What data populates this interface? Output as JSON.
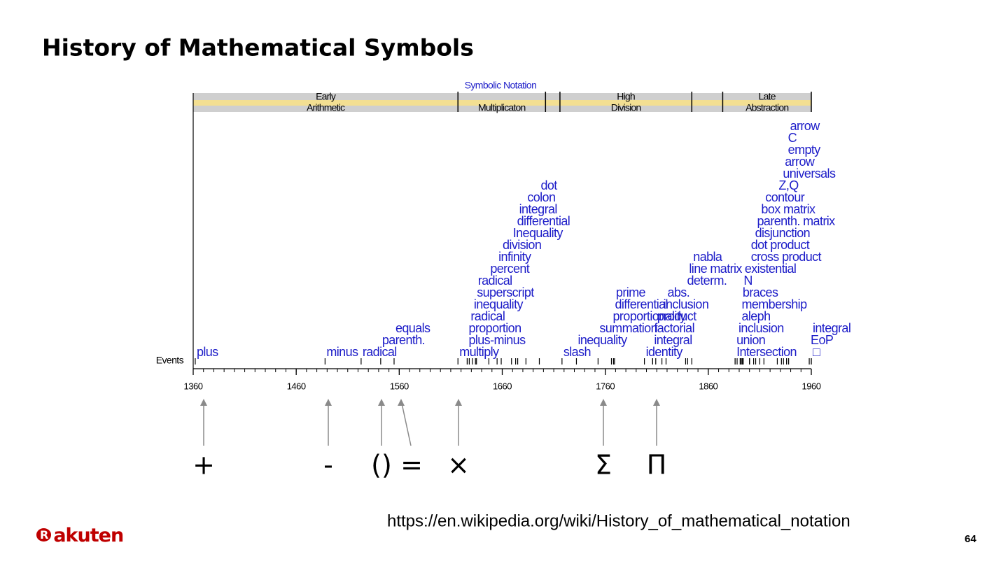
{
  "title": "History of Mathematical Symbols",
  "timeline": {
    "header": "Symbolic Notation",
    "events_label": "Events",
    "xlim": [
      1360,
      1960
    ],
    "xticks": [
      1360,
      1460,
      1560,
      1660,
      1760,
      1860,
      1960
    ],
    "eras": [
      {
        "lines": [
          "Early",
          "Arithmetic"
        ],
        "start": 1360,
        "end": 1617
      },
      {
        "lines": [
          "Multiplicaton"
        ],
        "start": 1617,
        "end": 1702
      },
      {
        "start": 1702,
        "end": 1716
      },
      {
        "lines": [
          "High",
          "Division"
        ],
        "start": 1716,
        "end": 1844
      },
      {
        "start": 1844,
        "end": 1874
      },
      {
        "lines": [
          "Late",
          "Abstraction"
        ],
        "start": 1874,
        "end": 1960
      }
    ],
    "events": [
      {
        "label": "plus",
        "year": 1362
      },
      {
        "label": "minus",
        "year": 1488
      },
      {
        "label": "radical",
        "year": 1523
      },
      {
        "label": "parenth.",
        "year": 1542
      },
      {
        "label": "equals",
        "year": 1555
      },
      {
        "label": "multiply",
        "year": 1617
      },
      {
        "label": "plus-minus",
        "year": 1626
      },
      {
        "label": "proportion",
        "year": 1626
      },
      {
        "label": "radical",
        "year": 1628
      },
      {
        "label": "inequality",
        "year": 1631
      },
      {
        "label": "superscript",
        "year": 1634
      },
      {
        "label": "radical",
        "year": 1635
      },
      {
        "label": "percent",
        "year": 1647
      },
      {
        "label": "infinity",
        "year": 1655
      },
      {
        "label": "division",
        "year": 1659
      },
      {
        "label": "Inequality",
        "year": 1669
      },
      {
        "label": "differential",
        "year": 1673
      },
      {
        "label": "integral",
        "year": 1675
      },
      {
        "label": "colon",
        "year": 1683
      },
      {
        "label": "dot",
        "year": 1696
      },
      {
        "label": "slash",
        "year": 1718
      },
      {
        "label": "inequality",
        "year": 1732
      },
      {
        "label": "summation",
        "year": 1753
      },
      {
        "label": "proportionality",
        "year": 1766
      },
      {
        "label": "differential",
        "year": 1768
      },
      {
        "label": "prime",
        "year": 1769
      },
      {
        "label": "identity",
        "year": 1798
      },
      {
        "label": "integral",
        "year": 1806
      },
      {
        "label": "factorial",
        "year": 1806
      },
      {
        "label": "product",
        "year": 1809
      },
      {
        "label": "inclusion",
        "year": 1815
      },
      {
        "label": "abs.",
        "year": 1819
      },
      {
        "label": "determ.",
        "year": 1838
      },
      {
        "label": "line matrix",
        "year": 1840
      },
      {
        "label": "nabla",
        "year": 1844
      },
      {
        "label": "□",
        "year": 1960
      },
      {
        "label": "EoP",
        "year": 1958
      },
      {
        "label": "integral",
        "year": 1960
      },
      {
        "label": "Intersection",
        "year": 1886
      },
      {
        "label": "union",
        "year": 1886
      },
      {
        "label": "inclusion",
        "year": 1888
      },
      {
        "label": "aleph",
        "year": 1891
      },
      {
        "label": "membership",
        "year": 1891
      },
      {
        "label": "braces",
        "year": 1892
      },
      {
        "label": "N",
        "year": 1893
      },
      {
        "label": "existential",
        "year": 1894
      },
      {
        "label": "cross product",
        "year": 1900
      },
      {
        "label": "dot product",
        "year": 1900
      },
      {
        "label": "disjunction",
        "year": 1904
      },
      {
        "label": "parenth. matrix",
        "year": 1906
      },
      {
        "label": "box matrix",
        "year": 1910
      },
      {
        "label": "contour",
        "year": 1914
      },
      {
        "label": "Z,Q",
        "year": 1927
      },
      {
        "label": "universals",
        "year": 1931
      },
      {
        "label": "arrow",
        "year": 1933
      },
      {
        "label": "empty",
        "year": 1936
      },
      {
        "label": "C",
        "year": 1936
      },
      {
        "label": "arrow",
        "year": 1938
      }
    ]
  },
  "symbols": [
    "+",
    "-",
    "()",
    "=",
    "×",
    "Σ",
    "Π"
  ],
  "source_url": "https://en.wikipedia.org/wiki/History_of_mathematical_notation",
  "logo": "Rakuten",
  "page_number": "64"
}
